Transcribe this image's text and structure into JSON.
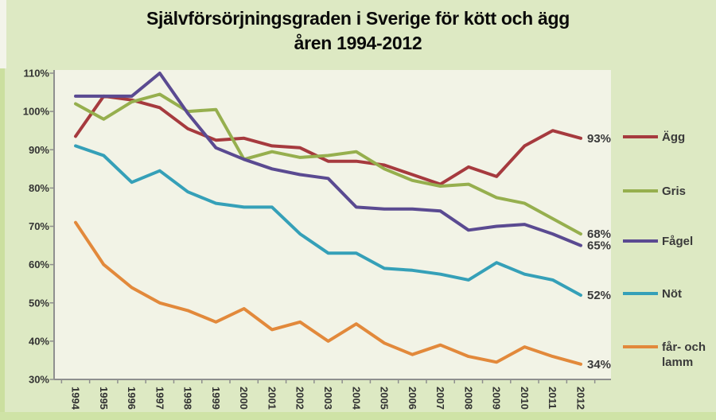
{
  "title": {
    "line1": "Självförsörjningsgraden i Sverige för kött och ägg",
    "line2": "åren 1994-2012"
  },
  "colors": {
    "page_bg": "#dde9c3",
    "plot_bg": "#f2f3e6",
    "axis": "#8f8f8f",
    "title_text": "#0a0a0a",
    "label_text": "#3a3a3a",
    "egg_red": "#A63A3E",
    "gris_green": "#96AF4E",
    "fagel_purple": "#5A4A91",
    "not_blue": "#35A0B8",
    "lamm_orange": "#E2893B"
  },
  "chart_data": {
    "type": "line",
    "title": "Självförsörjningsgraden i Sverige för kött och ägg åren 1994-2012",
    "x": [
      "1994",
      "1995",
      "1996",
      "1997",
      "1998",
      "1999",
      "2000",
      "2001",
      "2002",
      "2003",
      "2004",
      "2005",
      "2006",
      "2007",
      "2008",
      "2009",
      "2010",
      "2011",
      "2012"
    ],
    "ylim": [
      30,
      110
    ],
    "y_tick_labels": [
      "110%",
      "100%",
      "90%",
      "80%",
      "70%",
      "60%",
      "50%",
      "40%",
      "30%"
    ],
    "grid": false,
    "legend_position": "right",
    "series": [
      {
        "name": "Ägg",
        "color": "#A63A3E",
        "end_label": "93%",
        "values": [
          93.5,
          104,
          103,
          101,
          95.5,
          92.5,
          93,
          91,
          90.5,
          87,
          87,
          86,
          83.5,
          81,
          85.5,
          83,
          91,
          95,
          93
        ]
      },
      {
        "name": "Gris",
        "color": "#96AF4E",
        "end_label": "68%",
        "values": [
          102,
          98,
          102.5,
          104.5,
          100,
          100.5,
          87.5,
          89.5,
          88,
          88.5,
          89.5,
          85,
          82,
          80.5,
          81,
          77.5,
          76,
          72,
          68
        ]
      },
      {
        "name": "Fågel",
        "color": "#5A4A91",
        "end_label": "65%",
        "values": [
          104,
          104,
          104,
          110,
          99.5,
          90.5,
          87.5,
          85,
          83.5,
          82.5,
          75,
          74.5,
          74.5,
          74,
          69,
          70,
          70.5,
          68,
          65
        ]
      },
      {
        "name": "Nöt",
        "color": "#35A0B8",
        "end_label": "52%",
        "values": [
          91,
          88.5,
          81.5,
          84.5,
          79,
          76,
          75,
          75,
          68,
          63,
          63,
          59,
          58.5,
          57.5,
          56,
          60.5,
          57.5,
          56,
          52
        ]
      },
      {
        "name": "får- och lamm",
        "label_lines": [
          "får- och",
          "lamm"
        ],
        "color": "#E2893B",
        "end_label": "34%",
        "values": [
          71,
          60,
          54,
          50,
          48,
          45,
          48.5,
          43,
          45,
          40,
          44.5,
          39.5,
          36.5,
          39,
          36,
          34.5,
          38.5,
          36,
          34
        ]
      }
    ]
  }
}
